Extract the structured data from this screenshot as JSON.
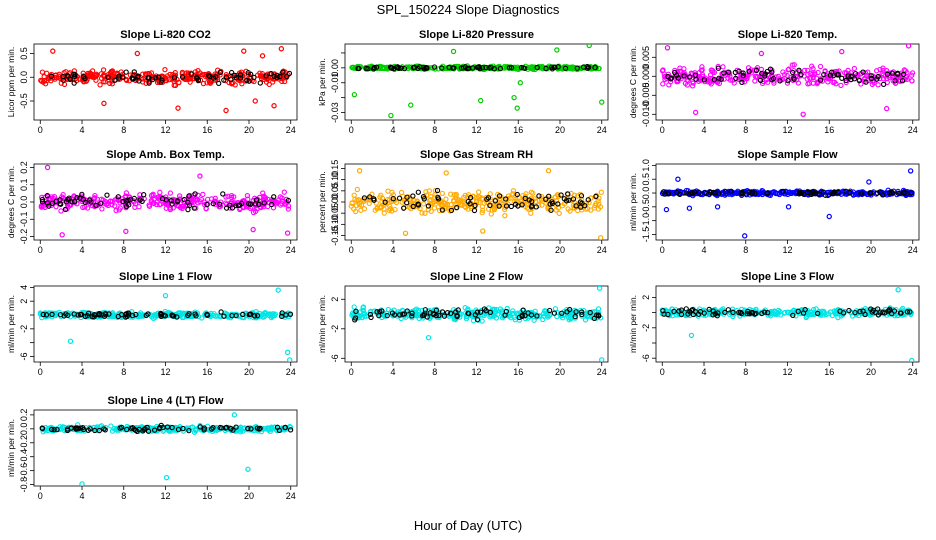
{
  "figure": {
    "title": "SPL_150224  Slope Diagnostics",
    "xlabel": "Hour of Day (UTC)"
  },
  "chart_data": [
    {
      "id": "co2",
      "type": "scatter",
      "title": "Slope Li-820 CO2",
      "ylabel": "Licor ppm per min.",
      "x_ticks": [
        0,
        4,
        8,
        12,
        16,
        20,
        24
      ],
      "y_ticks": [
        -0.5,
        0.0,
        0.5
      ],
      "y_tick_labels": [
        "-0.5",
        "0.0",
        "0.5"
      ],
      "ylim": [
        -0.9,
        0.7
      ],
      "color": "#ff0000",
      "spread": 0.2,
      "outliers": [
        [
          1.2,
          0.55
        ],
        [
          6.1,
          -0.55
        ],
        [
          9.3,
          0.5
        ],
        [
          13.2,
          -0.65
        ],
        [
          17.8,
          -0.7
        ],
        [
          19.5,
          0.55
        ],
        [
          20.6,
          -0.5
        ],
        [
          21.3,
          0.45
        ],
        [
          22.4,
          -0.6
        ],
        [
          23.1,
          0.6
        ]
      ]
    },
    {
      "id": "pressure",
      "type": "scatter",
      "title": "Slope Li-820 Pressure",
      "ylabel": "kPa per min.",
      "x_ticks": [
        0,
        4,
        8,
        12,
        16,
        20,
        24
      ],
      "y_ticks": [
        -0.03,
        -0.02,
        -0.01,
        0.0,
        0.01
      ],
      "y_tick_labels": [
        "-0.03",
        "",
        "-0.01",
        "0.00",
        ""
      ],
      "ylim": [
        -0.035,
        0.016
      ],
      "color": "#00cc00",
      "spread": 0.0015,
      "outliers": [
        [
          0.3,
          -0.018
        ],
        [
          3.8,
          -0.032
        ],
        [
          5.7,
          -0.025
        ],
        [
          9.8,
          0.011
        ],
        [
          12.4,
          -0.022
        ],
        [
          15.6,
          -0.02
        ],
        [
          15.9,
          -0.027
        ],
        [
          16.2,
          -0.01
        ],
        [
          19.7,
          0.012
        ],
        [
          22.8,
          0.015
        ],
        [
          24.0,
          -0.023
        ]
      ]
    },
    {
      "id": "temp",
      "type": "scatter",
      "title": "Slope Li-820 Temp.",
      "ylabel": "degrees C per min.",
      "x_ticks": [
        0,
        4,
        8,
        12,
        16,
        20,
        24
      ],
      "y_ticks": [
        -0.01,
        -0.005,
        0.0,
        0.005
      ],
      "y_tick_labels": [
        "-0.010",
        "-0.005",
        "0.000",
        "0.005"
      ],
      "ylim": [
        -0.0115,
        0.0085
      ],
      "color": "#ff00ff",
      "spread": 0.0035,
      "outliers": [
        [
          0.5,
          0.0075
        ],
        [
          3.2,
          -0.0095
        ],
        [
          9.5,
          0.006
        ],
        [
          13.5,
          -0.01
        ],
        [
          17.2,
          0.0065
        ],
        [
          21.5,
          -0.0085
        ],
        [
          23.6,
          0.008
        ]
      ]
    },
    {
      "id": "boxtemp",
      "type": "scatter",
      "title": "Slope Amb. Box Temp.",
      "ylabel": "degrees C per min.",
      "x_ticks": [
        0,
        4,
        8,
        12,
        16,
        20,
        24
      ],
      "y_ticks": [
        -0.2,
        -0.1,
        0.0,
        0.1,
        0.2
      ],
      "y_tick_labels": [
        "-0.2",
        "-0.1",
        "0.0",
        "0.1",
        "0.2"
      ],
      "ylim": [
        -0.22,
        0.22
      ],
      "color": "#ff00ff",
      "spread": 0.07,
      "outliers": [
        [
          0.7,
          0.2
        ],
        [
          2.1,
          -0.19
        ],
        [
          8.2,
          -0.17
        ],
        [
          15.3,
          0.15
        ],
        [
          20.4,
          -0.16
        ],
        [
          23.7,
          -0.18
        ]
      ]
    },
    {
      "id": "rh",
      "type": "scatter",
      "title": "Slope Gas Stream RH",
      "ylabel": "percent per min.",
      "x_ticks": [
        0,
        4,
        8,
        12,
        16,
        20,
        24
      ],
      "y_ticks": [
        -0.15,
        -0.1,
        -0.05,
        0.0,
        0.05,
        0.1,
        0.15
      ],
      "y_tick_labels": [
        "-0.15",
        "-0.10",
        "-0.05",
        "0.00",
        "0.05",
        "0.10",
        "0.15"
      ],
      "ylim": [
        -0.17,
        0.17
      ],
      "color": "#ffaa00",
      "spread": 0.07,
      "outliers": [
        [
          0.8,
          0.14
        ],
        [
          5.2,
          -0.14
        ],
        [
          9.1,
          0.13
        ],
        [
          12.6,
          -0.13
        ],
        [
          18.9,
          0.14
        ],
        [
          23.9,
          -0.16
        ]
      ]
    },
    {
      "id": "sampleflow",
      "type": "scatter",
      "title": "Slope Sample Flow",
      "ylabel": "ml/min per min.",
      "x_ticks": [
        0,
        4,
        8,
        12,
        16,
        20,
        24
      ],
      "y_ticks": [
        -1.5,
        -1.0,
        -0.5,
        0.0,
        0.5,
        1.0
      ],
      "y_tick_labels": [
        "-1.5",
        "-1.0",
        "-0.5",
        "0.0",
        "0.5",
        "1.0"
      ],
      "ylim": [
        -1.7,
        1.05
      ],
      "color": "#0000ff",
      "spread": 0.12,
      "outliers": [
        [
          0.4,
          -0.6
        ],
        [
          1.5,
          0.5
        ],
        [
          2.6,
          -0.55
        ],
        [
          5.3,
          -0.5
        ],
        [
          7.9,
          -1.55
        ],
        [
          12.1,
          -0.5
        ],
        [
          16.0,
          -0.85
        ],
        [
          19.8,
          0.4
        ],
        [
          23.8,
          0.8
        ]
      ]
    },
    {
      "id": "line1",
      "type": "scatter",
      "title": "Slope Line 1 Flow",
      "ylabel": "ml/min per min.",
      "x_ticks": [
        0,
        4,
        8,
        12,
        16,
        20,
        24
      ],
      "y_ticks": [
        -6,
        -4,
        -2,
        0,
        2,
        4
      ],
      "y_tick_labels": [
        "-6",
        "",
        "-2",
        "",
        "2",
        "4"
      ],
      "ylim": [
        -6.8,
        4.2
      ],
      "color": "#00e5e5",
      "spread": 0.6,
      "outliers": [
        [
          2.9,
          -3.8
        ],
        [
          12.0,
          2.8
        ],
        [
          22.8,
          3.6
        ],
        [
          23.9,
          -6.5
        ],
        [
          23.7,
          -5.4
        ]
      ]
    },
    {
      "id": "line2",
      "type": "scatter",
      "title": "Slope Line 2 Flow",
      "ylabel": "ml/min per min.",
      "x_ticks": [
        0,
        4,
        8,
        12,
        16,
        20,
        24
      ],
      "y_ticks": [
        -6,
        -2,
        2
      ],
      "y_tick_labels": [
        "-6",
        "-2",
        "2"
      ],
      "ylim": [
        -6.5,
        3.8
      ],
      "color": "#00e5e5",
      "spread": 1.1,
      "outliers": [
        [
          7.4,
          -3.2
        ],
        [
          23.8,
          3.5
        ],
        [
          24.0,
          -6.2
        ]
      ]
    },
    {
      "id": "line3",
      "type": "scatter",
      "title": "Slope Line 3 Flow",
      "ylabel": "ml/min per min.",
      "x_ticks": [
        0,
        4,
        8,
        12,
        16,
        20,
        24
      ],
      "y_ticks": [
        -6,
        -4,
        -2,
        0,
        2
      ],
      "y_tick_labels": [
        "-6",
        "",
        "-2",
        "",
        "2"
      ],
      "ylim": [
        -6.5,
        3.5
      ],
      "color": "#00e5e5",
      "spread": 0.7,
      "outliers": [
        [
          2.8,
          -3.0
        ],
        [
          22.6,
          3.0
        ],
        [
          23.9,
          -6.3
        ]
      ]
    },
    {
      "id": "line4",
      "type": "scatter",
      "title": "Slope Line 4 (LT) Flow",
      "ylabel": "ml/min per min.",
      "x_ticks": [
        0,
        4,
        8,
        12,
        16,
        20,
        24
      ],
      "y_ticks": [
        -0.8,
        -0.6,
        -0.4,
        -0.2,
        0.0,
        0.2
      ],
      "y_tick_labels": [
        "-0.8",
        "-0.6",
        "-0.4",
        "-0.2",
        "0.0",
        "0.2"
      ],
      "ylim": [
        -0.82,
        0.27
      ],
      "color": "#00e5e5",
      "spread": 0.06,
      "outliers": [
        [
          4.0,
          -0.79
        ],
        [
          12.1,
          -0.7
        ],
        [
          18.6,
          0.2
        ],
        [
          19.9,
          -0.58
        ]
      ]
    }
  ]
}
